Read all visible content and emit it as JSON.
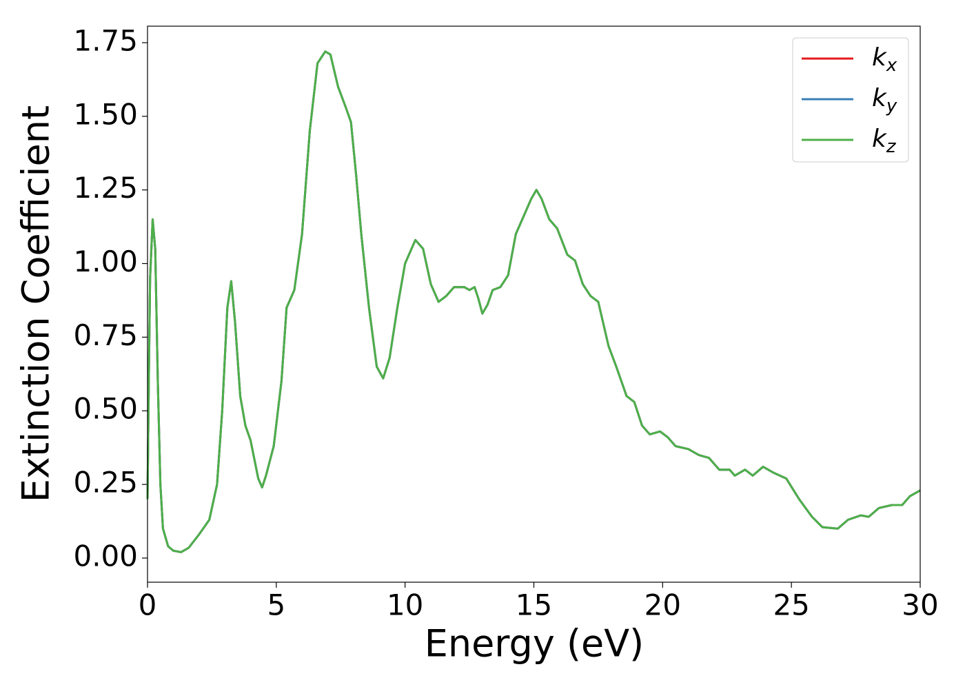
{
  "chart_data": {
    "type": "line",
    "xlabel": "Energy (eV)",
    "ylabel": "Extinction Coefficient",
    "x": [
      0,
      0.05,
      0.1,
      0.2,
      0.3,
      0.4,
      0.5,
      0.6,
      0.8,
      1.0,
      1.3,
      1.6,
      2.0,
      2.4,
      2.7,
      2.9,
      3.1,
      3.25,
      3.4,
      3.6,
      3.8,
      4.0,
      4.3,
      4.45,
      4.6,
      4.9,
      5.2,
      5.4,
      5.7,
      6.0,
      6.3,
      6.6,
      6.9,
      7.1,
      7.4,
      7.7,
      7.9,
      8.1,
      8.3,
      8.6,
      8.9,
      9.15,
      9.4,
      9.7,
      10.0,
      10.4,
      10.7,
      11.0,
      11.3,
      11.6,
      11.9,
      12.3,
      12.5,
      12.7,
      12.85,
      13.0,
      13.2,
      13.4,
      13.7,
      14.0,
      14.3,
      14.6,
      14.9,
      15.1,
      15.3,
      15.6,
      15.9,
      16.3,
      16.6,
      16.9,
      17.2,
      17.5,
      17.9,
      18.2,
      18.6,
      18.9,
      19.2,
      19.5,
      19.9,
      20.2,
      20.5,
      21.0,
      21.4,
      21.8,
      22.2,
      22.6,
      22.8,
      23.2,
      23.5,
      23.9,
      24.3,
      24.8,
      25.3,
      25.8,
      26.2,
      26.8,
      27.2,
      27.7,
      28.0,
      28.4,
      28.9,
      29.3,
      29.6,
      30.0
    ],
    "series": [
      {
        "name": "kx",
        "color": "#e41a1c",
        "values": [
          0.2,
          0.6,
          0.95,
          1.15,
          1.05,
          0.6,
          0.25,
          0.1,
          0.04,
          0.025,
          0.02,
          0.035,
          0.08,
          0.13,
          0.25,
          0.5,
          0.85,
          0.94,
          0.8,
          0.55,
          0.45,
          0.4,
          0.27,
          0.24,
          0.28,
          0.38,
          0.6,
          0.85,
          0.91,
          1.1,
          1.45,
          1.68,
          1.72,
          1.71,
          1.6,
          1.53,
          1.48,
          1.3,
          1.1,
          0.85,
          0.65,
          0.61,
          0.68,
          0.85,
          1.0,
          1.08,
          1.05,
          0.93,
          0.87,
          0.89,
          0.92,
          0.92,
          0.91,
          0.92,
          0.88,
          0.83,
          0.86,
          0.91,
          0.92,
          0.96,
          1.1,
          1.16,
          1.22,
          1.25,
          1.22,
          1.15,
          1.12,
          1.03,
          1.01,
          0.93,
          0.89,
          0.87,
          0.72,
          0.65,
          0.55,
          0.53,
          0.45,
          0.42,
          0.43,
          0.41,
          0.38,
          0.37,
          0.35,
          0.34,
          0.3,
          0.3,
          0.28,
          0.3,
          0.28,
          0.31,
          0.29,
          0.27,
          0.2,
          0.14,
          0.105,
          0.1,
          0.13,
          0.145,
          0.14,
          0.17,
          0.18,
          0.18,
          0.21,
          0.23
        ]
      },
      {
        "name": "ky",
        "color": "#377eb8",
        "values": [
          0.2,
          0.6,
          0.95,
          1.15,
          1.05,
          0.6,
          0.25,
          0.1,
          0.04,
          0.025,
          0.02,
          0.035,
          0.08,
          0.13,
          0.25,
          0.5,
          0.85,
          0.94,
          0.8,
          0.55,
          0.45,
          0.4,
          0.27,
          0.24,
          0.28,
          0.38,
          0.6,
          0.85,
          0.91,
          1.1,
          1.45,
          1.68,
          1.72,
          1.71,
          1.6,
          1.53,
          1.48,
          1.3,
          1.1,
          0.85,
          0.65,
          0.61,
          0.68,
          0.85,
          1.0,
          1.08,
          1.05,
          0.93,
          0.87,
          0.89,
          0.92,
          0.92,
          0.91,
          0.92,
          0.88,
          0.83,
          0.86,
          0.91,
          0.92,
          0.96,
          1.1,
          1.16,
          1.22,
          1.25,
          1.22,
          1.15,
          1.12,
          1.03,
          1.01,
          0.93,
          0.89,
          0.87,
          0.72,
          0.65,
          0.55,
          0.53,
          0.45,
          0.42,
          0.43,
          0.41,
          0.38,
          0.37,
          0.35,
          0.34,
          0.3,
          0.3,
          0.28,
          0.3,
          0.28,
          0.31,
          0.29,
          0.27,
          0.2,
          0.14,
          0.105,
          0.1,
          0.13,
          0.145,
          0.14,
          0.17,
          0.18,
          0.18,
          0.21,
          0.23
        ]
      },
      {
        "name": "kz",
        "color": "#4daf4a",
        "values": [
          0.2,
          0.6,
          0.95,
          1.15,
          1.05,
          0.6,
          0.25,
          0.1,
          0.04,
          0.025,
          0.02,
          0.035,
          0.08,
          0.13,
          0.25,
          0.5,
          0.85,
          0.94,
          0.8,
          0.55,
          0.45,
          0.4,
          0.27,
          0.24,
          0.28,
          0.38,
          0.6,
          0.85,
          0.91,
          1.1,
          1.45,
          1.68,
          1.72,
          1.71,
          1.6,
          1.53,
          1.48,
          1.3,
          1.1,
          0.85,
          0.65,
          0.61,
          0.68,
          0.85,
          1.0,
          1.08,
          1.05,
          0.93,
          0.87,
          0.89,
          0.92,
          0.92,
          0.91,
          0.92,
          0.88,
          0.83,
          0.86,
          0.91,
          0.92,
          0.96,
          1.1,
          1.16,
          1.22,
          1.25,
          1.22,
          1.15,
          1.12,
          1.03,
          1.01,
          0.93,
          0.89,
          0.87,
          0.72,
          0.65,
          0.55,
          0.53,
          0.45,
          0.42,
          0.43,
          0.41,
          0.38,
          0.37,
          0.35,
          0.34,
          0.3,
          0.3,
          0.28,
          0.3,
          0.28,
          0.31,
          0.29,
          0.27,
          0.2,
          0.14,
          0.105,
          0.1,
          0.13,
          0.145,
          0.14,
          0.17,
          0.18,
          0.18,
          0.21,
          0.23
        ]
      }
    ],
    "xlim": [
      0,
      30
    ],
    "xticks": [
      0,
      5,
      10,
      15,
      20,
      25,
      30
    ],
    "ylim": [
      -0.082,
      1.806
    ],
    "yticks": [
      {
        "value": 0,
        "label": "0.00"
      },
      {
        "value": 0.25,
        "label": "0.25"
      },
      {
        "value": 0.5,
        "label": "0.50"
      },
      {
        "value": 0.75,
        "label": "0.75"
      },
      {
        "value": 1,
        "label": "1.00"
      },
      {
        "value": 1.25,
        "label": "1.25"
      },
      {
        "value": 1.5,
        "label": "1.50"
      },
      {
        "value": 1.75,
        "label": "1.75"
      }
    ],
    "grid": false,
    "legend": "upper right"
  }
}
